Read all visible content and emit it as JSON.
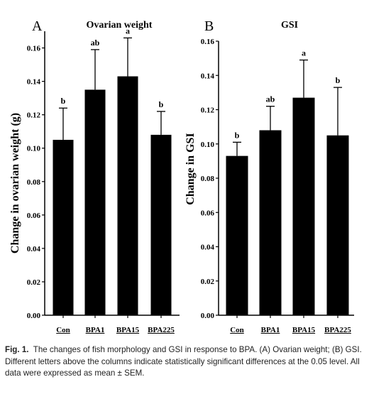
{
  "figure": {
    "caption_label": "Fig. 1.",
    "caption_text": "The changes of fish morphology and GSI in response to BPA. (A) Ovarian weight; (B) GSI. Different letters above the columns indicate statistically significant differences at the 0.05 level. All data were expressed as mean ± SEM."
  },
  "chart_data": [
    {
      "type": "bar",
      "panel": "A",
      "title": "Ovarian weight",
      "ylabel": "Change in ovarian weight (g)",
      "xlabel": "",
      "categories": [
        "Con",
        "BPA1",
        "BPA15",
        "BPA225"
      ],
      "values": [
        0.105,
        0.135,
        0.143,
        0.108
      ],
      "errors": [
        0.019,
        0.024,
        0.023,
        0.014
      ],
      "letters": [
        "b",
        "ab",
        "a",
        "b"
      ],
      "ylim": [
        0,
        0.17
      ],
      "yticks": [
        "0.00",
        "0.02",
        "0.04",
        "0.06",
        "0.08",
        "0.10",
        "0.12",
        "0.14",
        "0.16"
      ],
      "bar_color": "#000000"
    },
    {
      "type": "bar",
      "panel": "B",
      "title": "GSI",
      "ylabel": "Change in GSI",
      "xlabel": "",
      "categories": [
        "Con",
        "BPA1",
        "BPA15",
        "BPA225"
      ],
      "values": [
        0.093,
        0.108,
        0.127,
        0.105
      ],
      "errors": [
        0.008,
        0.014,
        0.022,
        0.028
      ],
      "letters": [
        "b",
        "ab",
        "a",
        "b"
      ],
      "ylim": [
        0,
        0.16
      ],
      "yticks": [
        "0.00",
        "0.02",
        "0.04",
        "0.06",
        "0.08",
        "0.10",
        "0.12",
        "0.14",
        "0.16"
      ],
      "bar_color": "#000000"
    }
  ]
}
